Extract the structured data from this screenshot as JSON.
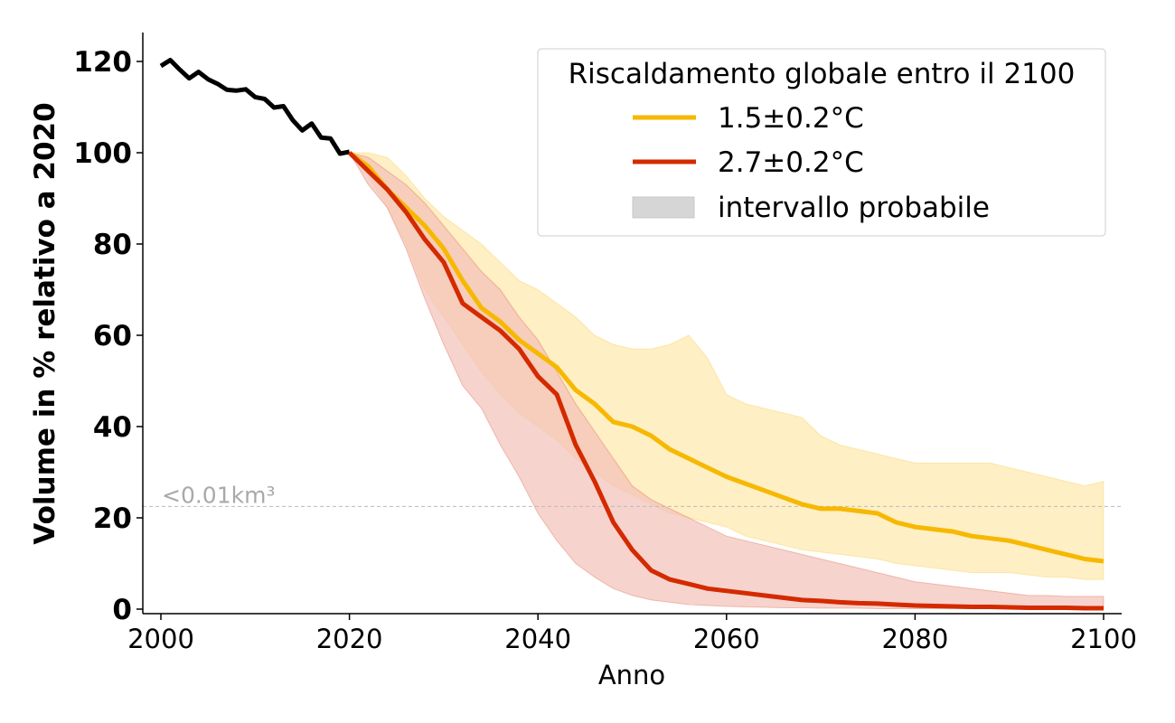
{
  "chart_data": {
    "type": "line",
    "xlabel": "Anno",
    "ylabel": "Volume in % relativo a 2020",
    "xlim": [
      1998,
      2102
    ],
    "ylim": [
      -1,
      126
    ],
    "xticks": [
      2000,
      2020,
      2040,
      2060,
      2080,
      2100
    ],
    "yticks": [
      0,
      20,
      40,
      60,
      80,
      100,
      120
    ],
    "legend": {
      "title": "Riscaldamento globale entro il 2100",
      "placement": "top-right",
      "entries": [
        {
          "label": "1.5±0.2°C",
          "color": "#f6b800",
          "kind": "line"
        },
        {
          "label": "2.7±0.2°C",
          "color": "#d42a00",
          "kind": "line"
        },
        {
          "label": "intervallo probabile",
          "color": "#d6d6d6",
          "kind": "band"
        }
      ]
    },
    "reference_line": {
      "y": 22.5,
      "label": "<0.01km³",
      "color": "#bbbbbb"
    },
    "historical": {
      "color": "#000000",
      "x": [
        2000,
        2001,
        2002,
        2003,
        2004,
        2005,
        2006,
        2007,
        2008,
        2009,
        2010,
        2011,
        2012,
        2013,
        2014,
        2015,
        2016,
        2017,
        2018,
        2019,
        2020
      ],
      "y": [
        119,
        120.3,
        118.2,
        116.3,
        117.7,
        116.1,
        115.1,
        113.8,
        113.6,
        113.9,
        112.2,
        111.8,
        109.9,
        110.2,
        107.1,
        104.9,
        106.4,
        103.3,
        103.1,
        99.8,
        100.2
      ]
    },
    "series": [
      {
        "name": "1.5±0.2°C",
        "color": "#f6b800",
        "band_color": "#fde9b0",
        "x": [
          2020,
          2022,
          2024,
          2026,
          2028,
          2030,
          2032,
          2034,
          2036,
          2038,
          2040,
          2042,
          2044,
          2046,
          2048,
          2050,
          2052,
          2054,
          2056,
          2058,
          2060,
          2062,
          2064,
          2066,
          2068,
          2070,
          2072,
          2074,
          2076,
          2078,
          2080,
          2082,
          2084,
          2086,
          2088,
          2090,
          2092,
          2094,
          2096,
          2098,
          2100
        ],
        "y": [
          100,
          97,
          92,
          88,
          84,
          79,
          72,
          66,
          63,
          59,
          56,
          53,
          48,
          45,
          41,
          40,
          38,
          35,
          33,
          31,
          29,
          27.5,
          26,
          24.5,
          23,
          22,
          22,
          21.5,
          21,
          19,
          18,
          17.5,
          17,
          16,
          15.5,
          15,
          14,
          13,
          12,
          11,
          10.5
        ],
        "lower": [
          100,
          95,
          88,
          80,
          70,
          64,
          58,
          52,
          47,
          43,
          40,
          37,
          33,
          30,
          27,
          25,
          23,
          21,
          20,
          19,
          18,
          16,
          15,
          14,
          13,
          12.5,
          12,
          11.5,
          11,
          10,
          9.5,
          9,
          8.5,
          8,
          8,
          8,
          7.5,
          7,
          7,
          6.5,
          6.5
        ],
        "upper": [
          100,
          100,
          99,
          95,
          90,
          86,
          83,
          80,
          76,
          72,
          70,
          67,
          64,
          60,
          58,
          57,
          57,
          58,
          60,
          55,
          47,
          45,
          44,
          43,
          42,
          38,
          36,
          35,
          34,
          33,
          32,
          32,
          32,
          32,
          32,
          31,
          30,
          29,
          28,
          27,
          28
        ]
      },
      {
        "name": "2.7±0.2°C",
        "color": "#d42a00",
        "band_color": "#f2c0b8",
        "x": [
          2020,
          2022,
          2024,
          2026,
          2028,
          2030,
          2032,
          2034,
          2036,
          2038,
          2040,
          2042,
          2044,
          2046,
          2048,
          2050,
          2052,
          2054,
          2056,
          2058,
          2060,
          2062,
          2064,
          2066,
          2068,
          2070,
          2072,
          2074,
          2076,
          2078,
          2080,
          2082,
          2084,
          2086,
          2088,
          2090,
          2092,
          2094,
          2096,
          2098,
          2100
        ],
        "y": [
          100,
          96,
          92,
          87,
          81,
          76,
          67,
          64,
          61,
          57,
          51,
          47,
          36,
          28,
          19,
          13,
          8.5,
          6.5,
          5.5,
          4.5,
          4,
          3.5,
          3,
          2.5,
          2,
          1.8,
          1.5,
          1.3,
          1.2,
          1,
          0.8,
          0.7,
          0.6,
          0.5,
          0.5,
          0.4,
          0.3,
          0.3,
          0.3,
          0.2,
          0.2
        ],
        "lower": [
          100,
          93,
          88,
          79,
          68,
          58,
          49,
          44,
          36,
          29,
          21,
          15,
          10,
          7,
          4.5,
          3,
          2,
          1.5,
          1,
          0.8,
          0.6,
          0.5,
          0.4,
          0.3,
          0.3,
          0.2,
          0.2,
          0.2,
          0.1,
          0.1,
          0.1,
          0.1,
          0.1,
          0.1,
          0.1,
          0.1,
          0.1,
          0.1,
          0.1,
          0.1,
          0.1
        ],
        "upper": [
          100,
          99,
          96,
          93,
          89,
          84,
          79,
          74,
          70,
          64,
          59,
          52,
          45,
          39,
          33,
          27,
          24,
          22,
          20,
          18,
          16,
          15,
          14,
          13,
          12,
          11,
          10,
          9,
          8,
          7,
          6,
          5.5,
          5,
          4.5,
          4,
          3.5,
          3,
          3,
          2.8,
          2.8,
          2.8
        ]
      }
    ]
  }
}
